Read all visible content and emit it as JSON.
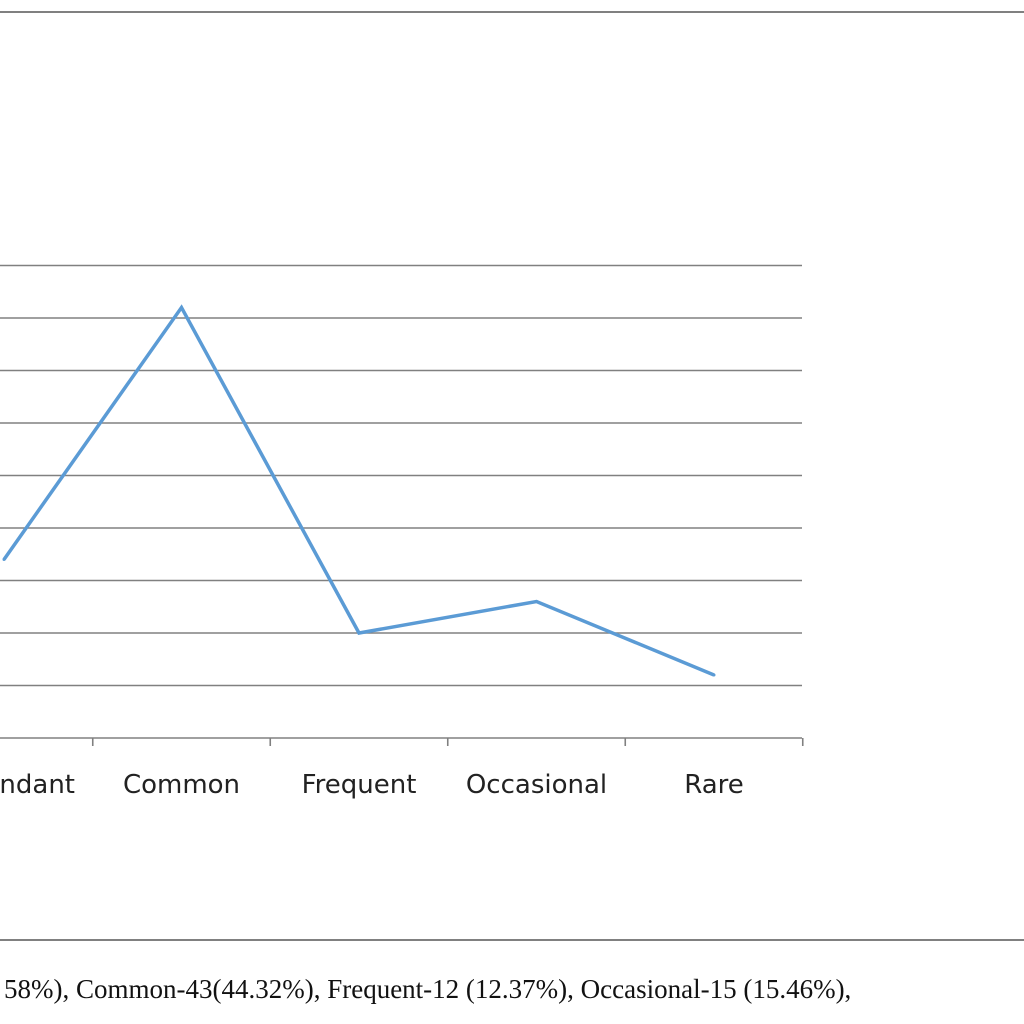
{
  "caption": "58%), Common-43(44.32%), Frequent-12 (12.37%), Occasional-15 (15.46%),",
  "colors": {
    "line": "#5B9BD5",
    "grid": "#808080",
    "axis": "#808080",
    "frame": "#808080"
  },
  "chart_data": {
    "type": "line",
    "categories": [
      "Abundant",
      "Common",
      "Frequent",
      "Occasional",
      "Rare"
    ],
    "category_labels_shown": [
      "ndant",
      "Common",
      "Frequent",
      "Occasional",
      "Rare"
    ],
    "series": [
      {
        "values": [
          19,
          43,
          12,
          15,
          8
        ]
      }
    ],
    "ylim": [
      2,
      50
    ],
    "grid": true,
    "legend": "none",
    "title": "",
    "xlabel": "",
    "ylabel": ""
  }
}
